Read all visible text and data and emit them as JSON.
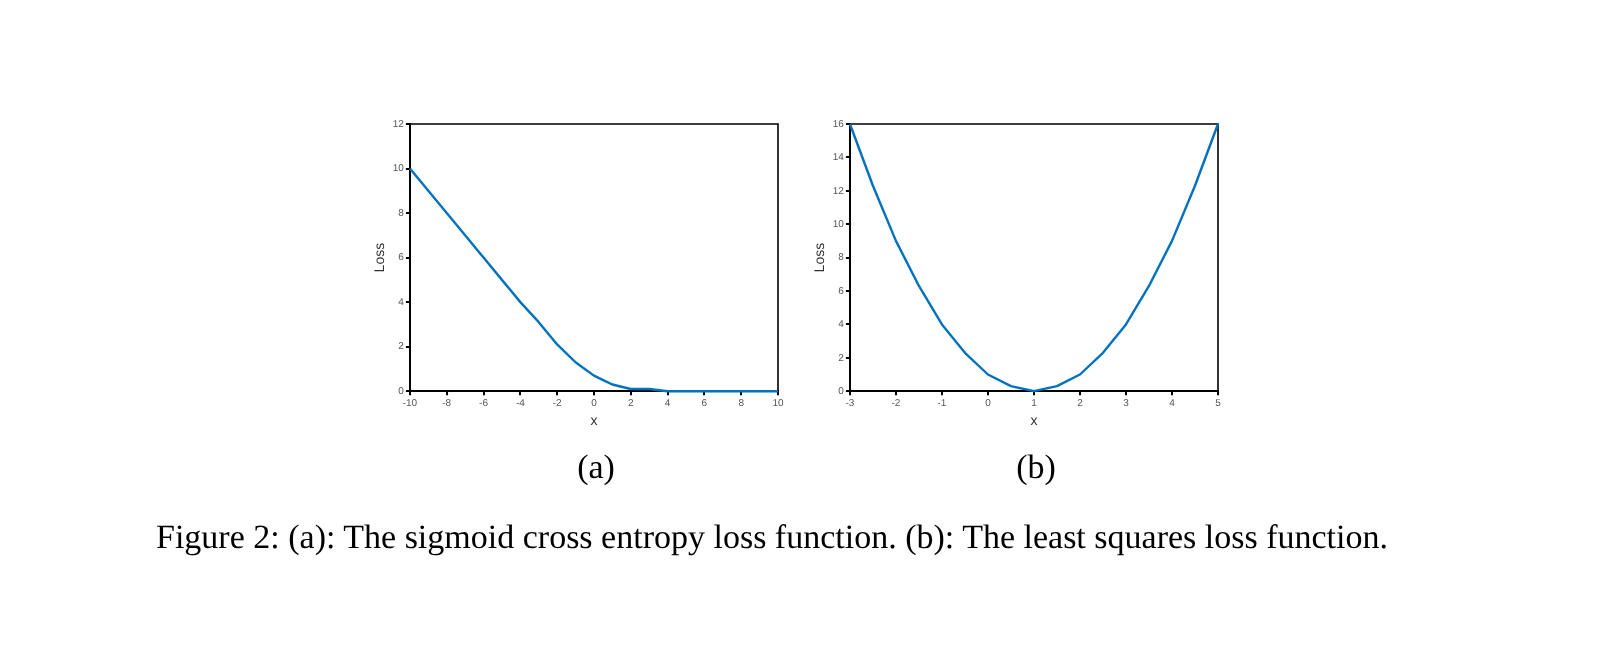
{
  "chart_data": [
    {
      "type": "line",
      "xlabel": "x",
      "ylabel": "Loss",
      "annotations": [
        "(a)",
        "Figure 2: (a): The sigmoid cross entropy loss function. (b): The least squares loss function."
      ],
      "xlim": [
        -10,
        10
      ],
      "xticks": [
        -10,
        -8,
        -6,
        -4,
        -2,
        0,
        2,
        4,
        6,
        8,
        10
      ],
      "ylim": [
        0,
        12
      ],
      "yticks": [
        0,
        2,
        4,
        6,
        8,
        10,
        12
      ],
      "grid": false,
      "marker": "none",
      "series": [
        {
          "color": "#0072bd",
          "x": [
            -10,
            -9,
            -8,
            -7,
            -6,
            -5,
            -4,
            -3,
            -2,
            -1.5,
            -1,
            -0.5,
            0,
            0.5,
            1,
            1.5,
            2,
            3,
            4,
            5,
            6,
            8,
            10
          ],
          "values": [
            10,
            9,
            8,
            7,
            6,
            5,
            4,
            3.1,
            2.1,
            1.7,
            1.3,
            1,
            0.7,
            0.5,
            0.3,
            0.2,
            0.1,
            0.1,
            0,
            0,
            0,
            0,
            0
          ]
        }
      ]
    },
    {
      "type": "line",
      "xlabel": "x",
      "ylabel": "Loss",
      "annotations": [
        "(b)"
      ],
      "xlim": [
        -3,
        5
      ],
      "xticks": [
        -3,
        -2,
        -1,
        0,
        1,
        2,
        3,
        4,
        5
      ],
      "ylim": [
        0,
        16
      ],
      "yticks": [
        0,
        2,
        4,
        6,
        8,
        10,
        12,
        14,
        16
      ],
      "grid": false,
      "marker": "none",
      "series": [
        {
          "color": "#0072bd",
          "x": [
            -3,
            -2.5,
            -2,
            -1.5,
            -1,
            -0.5,
            0,
            0.5,
            1,
            1.5,
            2,
            2.5,
            3,
            3.5,
            4,
            4.5,
            5
          ],
          "values": [
            16,
            12.3,
            9,
            6.3,
            4,
            2.3,
            1,
            0.3,
            0,
            0.3,
            1,
            2.3,
            4,
            6.3,
            9,
            12.3,
            16
          ]
        }
      ]
    }
  ]
}
